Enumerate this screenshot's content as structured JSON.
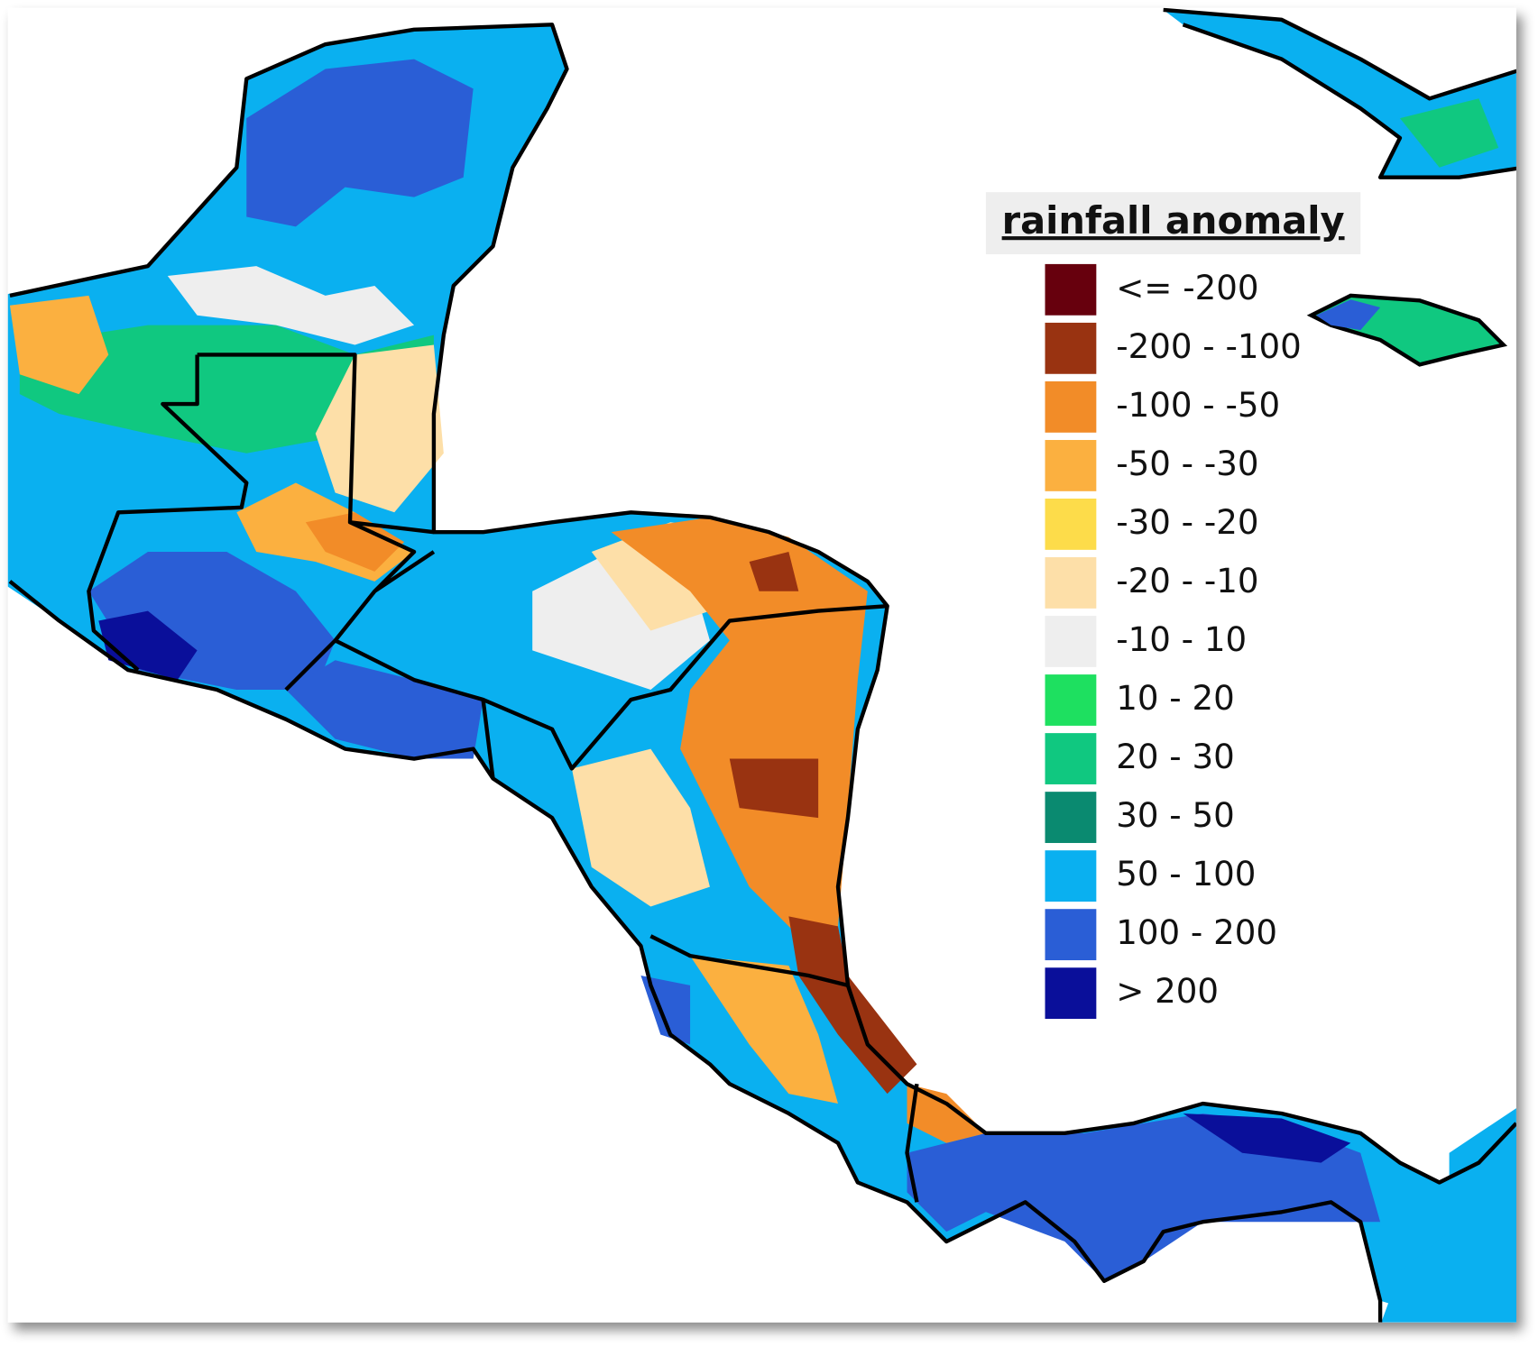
{
  "legend": {
    "title": "rainfall anomaly",
    "items": [
      {
        "label": "<= -200",
        "color": "#67000d"
      },
      {
        "label": "-200 - -100",
        "color": "#993311"
      },
      {
        "label": "-100 - -50",
        "color": "#f28c28"
      },
      {
        "label": "-50 - -30",
        "color": "#fbb040"
      },
      {
        "label": "-30 - -20",
        "color": "#fddc4a"
      },
      {
        "label": "-20 - -10",
        "color": "#fddfa8"
      },
      {
        "label": "-10 - 10",
        "color": "#eeeeee"
      },
      {
        "label": "10 - 20",
        "color": "#1ee060"
      },
      {
        "label": "20 - 30",
        "color": "#10c880"
      },
      {
        "label": "30 - 50",
        "color": "#0a8a70"
      },
      {
        "label": "50 - 100",
        "color": "#0ab0f0"
      },
      {
        "label": "100 - 200",
        "color": "#2a5ed6"
      },
      {
        "label": "> 200",
        "color": "#0a0f9a"
      }
    ]
  }
}
